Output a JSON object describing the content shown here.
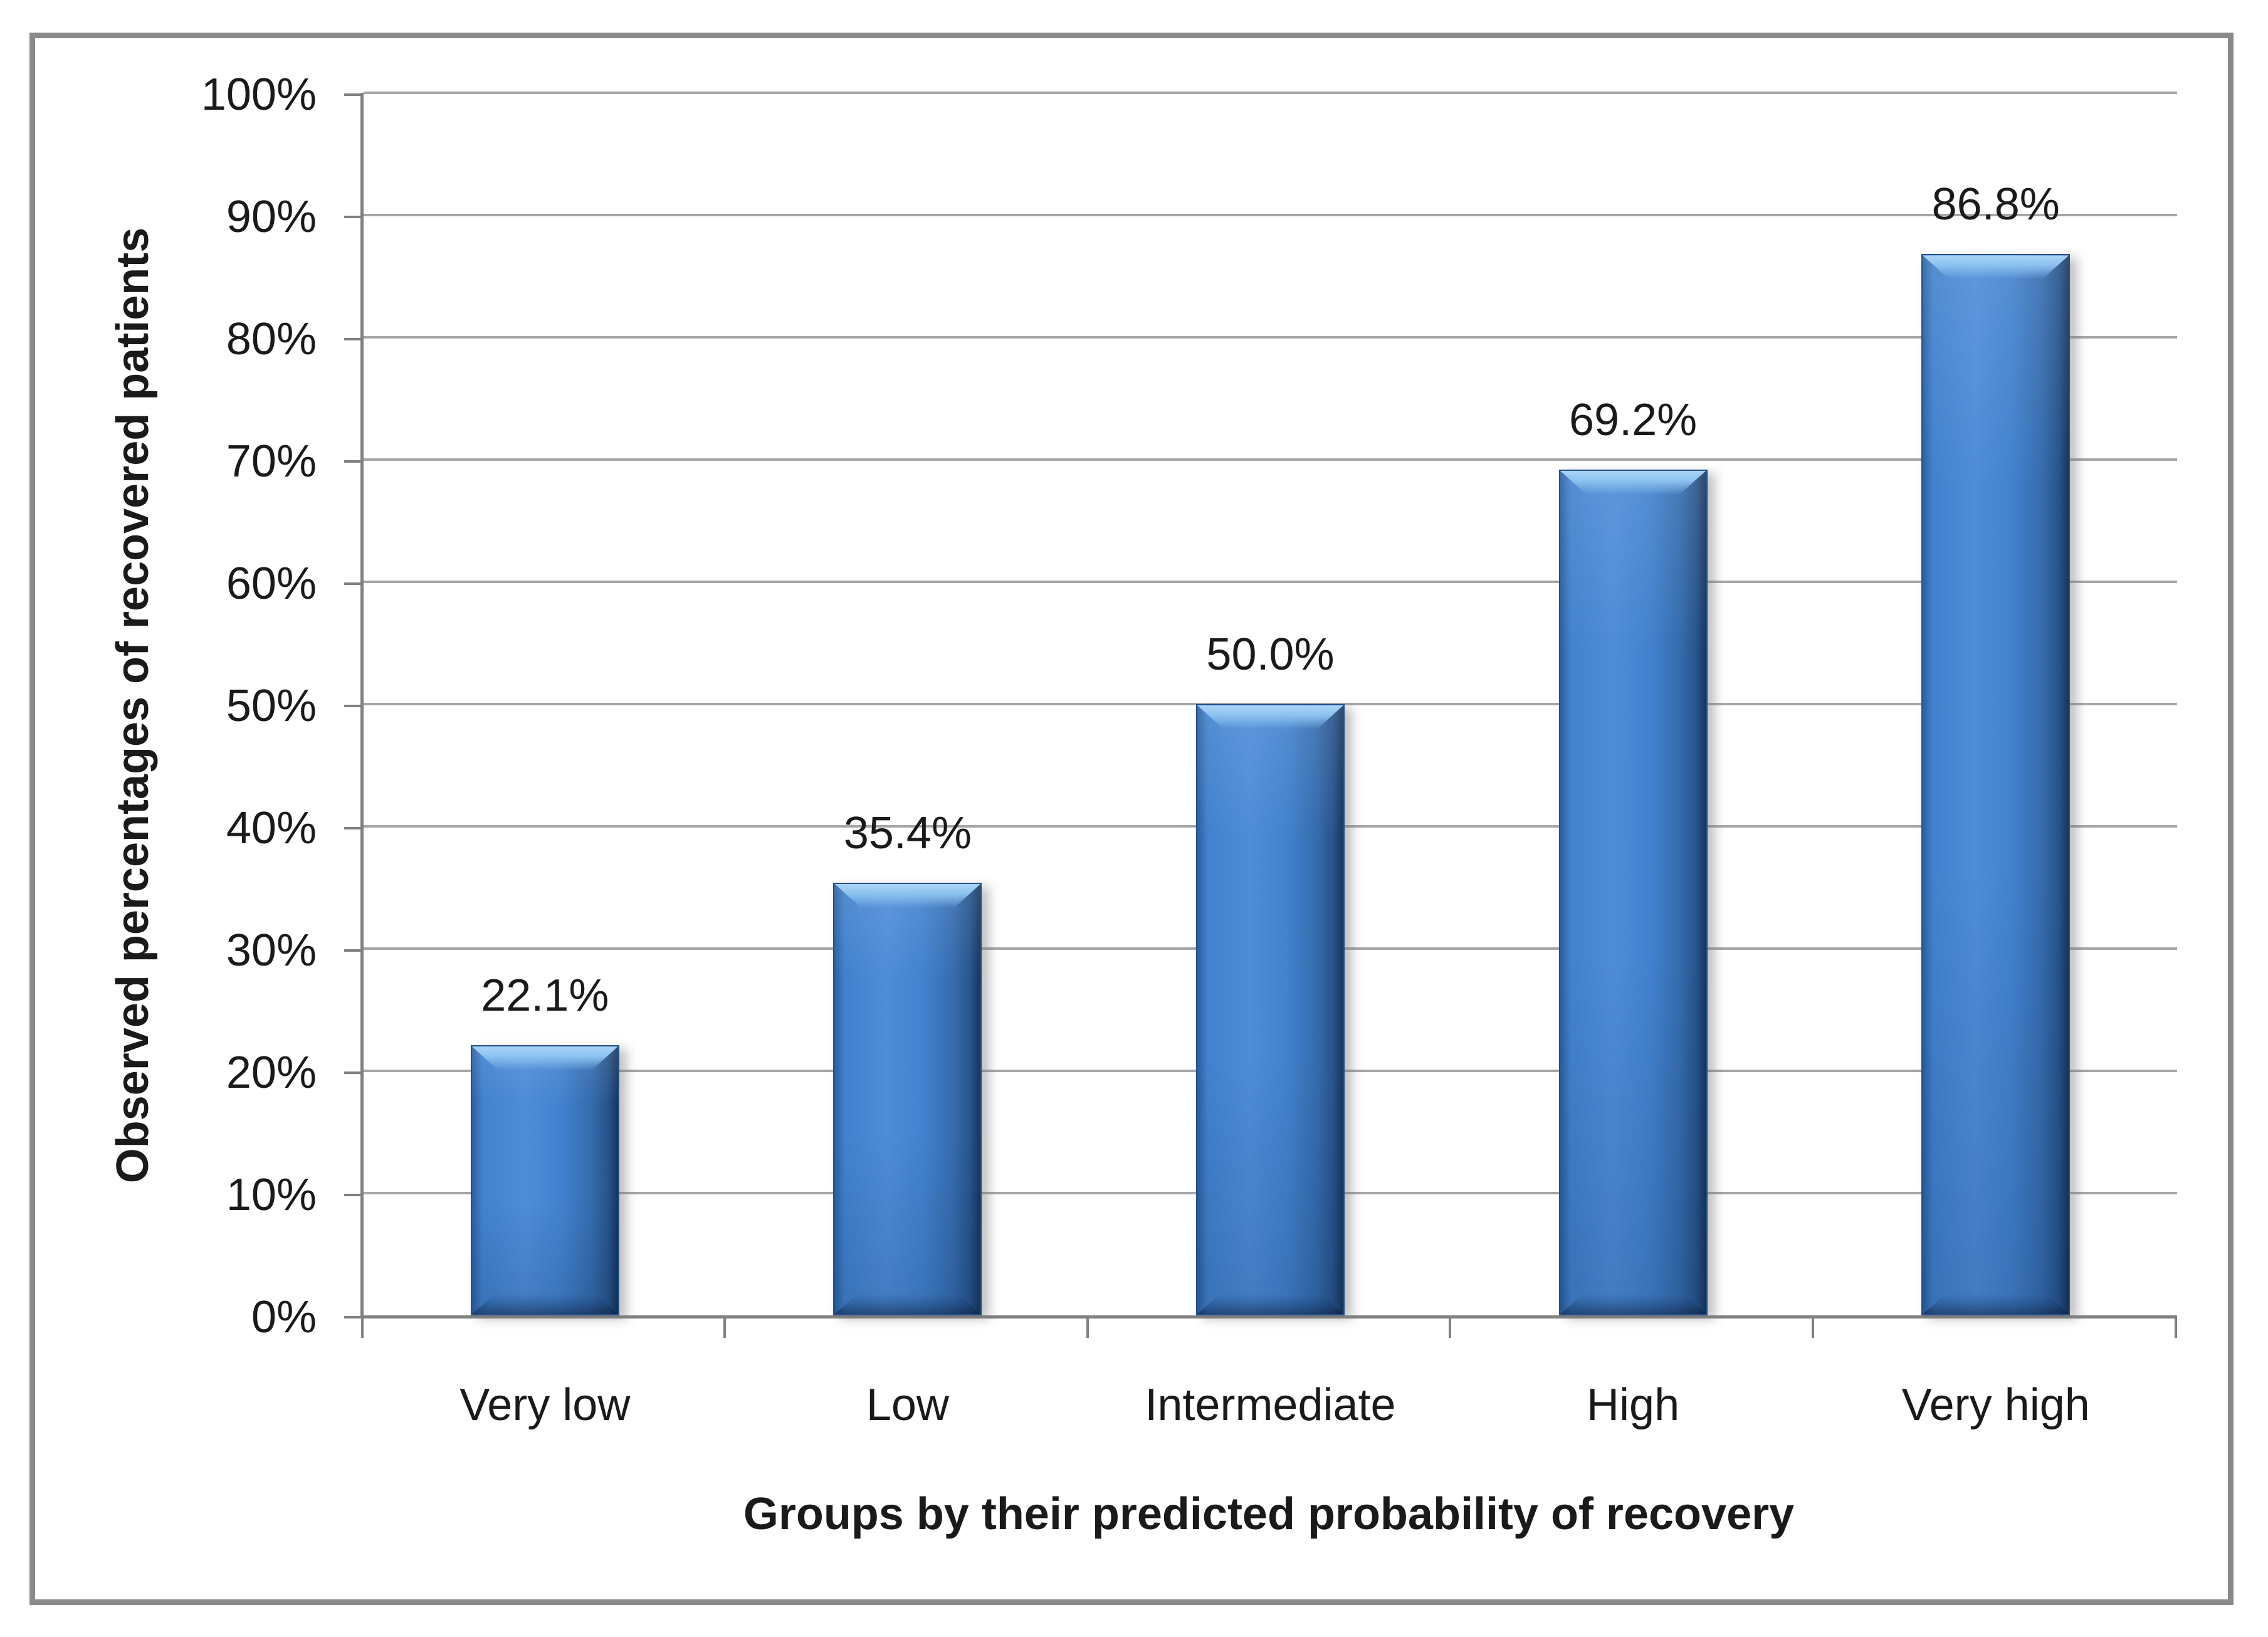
{
  "chart_data": {
    "type": "bar",
    "title": "",
    "categories": [
      "Very low",
      "Low",
      "Intermediate",
      "High",
      "Very high"
    ],
    "values": [
      22.1,
      35.4,
      50.0,
      69.2,
      86.8
    ],
    "value_labels": [
      "22.1%",
      "35.4%",
      "50.0%",
      "69.2%",
      "86.8%"
    ],
    "xlabel": "Groups by their predicted probability of recovery",
    "ylabel": "Observed percentages of recovered patients",
    "ylim": [
      0,
      100
    ],
    "ytick_values": [
      0,
      10,
      20,
      30,
      40,
      50,
      60,
      70,
      80,
      90,
      100
    ],
    "ytick_labels": [
      "0%",
      "10%",
      "20%",
      "30%",
      "40%",
      "50%",
      "60%",
      "70%",
      "80%",
      "90%",
      "100%"
    ],
    "grid": "horizontal",
    "legend": "none",
    "bar_width_fraction": 0.41,
    "colors": {
      "bar_fill": "#4181CD",
      "bar_bright": "#4E8CD8",
      "bar_light": "#A9D4F8",
      "bar_mid": "#356BAD",
      "bar_shade": "#27548C",
      "bar_dark": "#16355C",
      "bar_left_edge": "#2B5F9F",
      "bar_border": "#24508A",
      "gridline": "#A6A6A6",
      "axis": "#808080",
      "frame": "#8A8A8A",
      "text": "#1A1A1A",
      "background": "#FFFFFF"
    }
  }
}
